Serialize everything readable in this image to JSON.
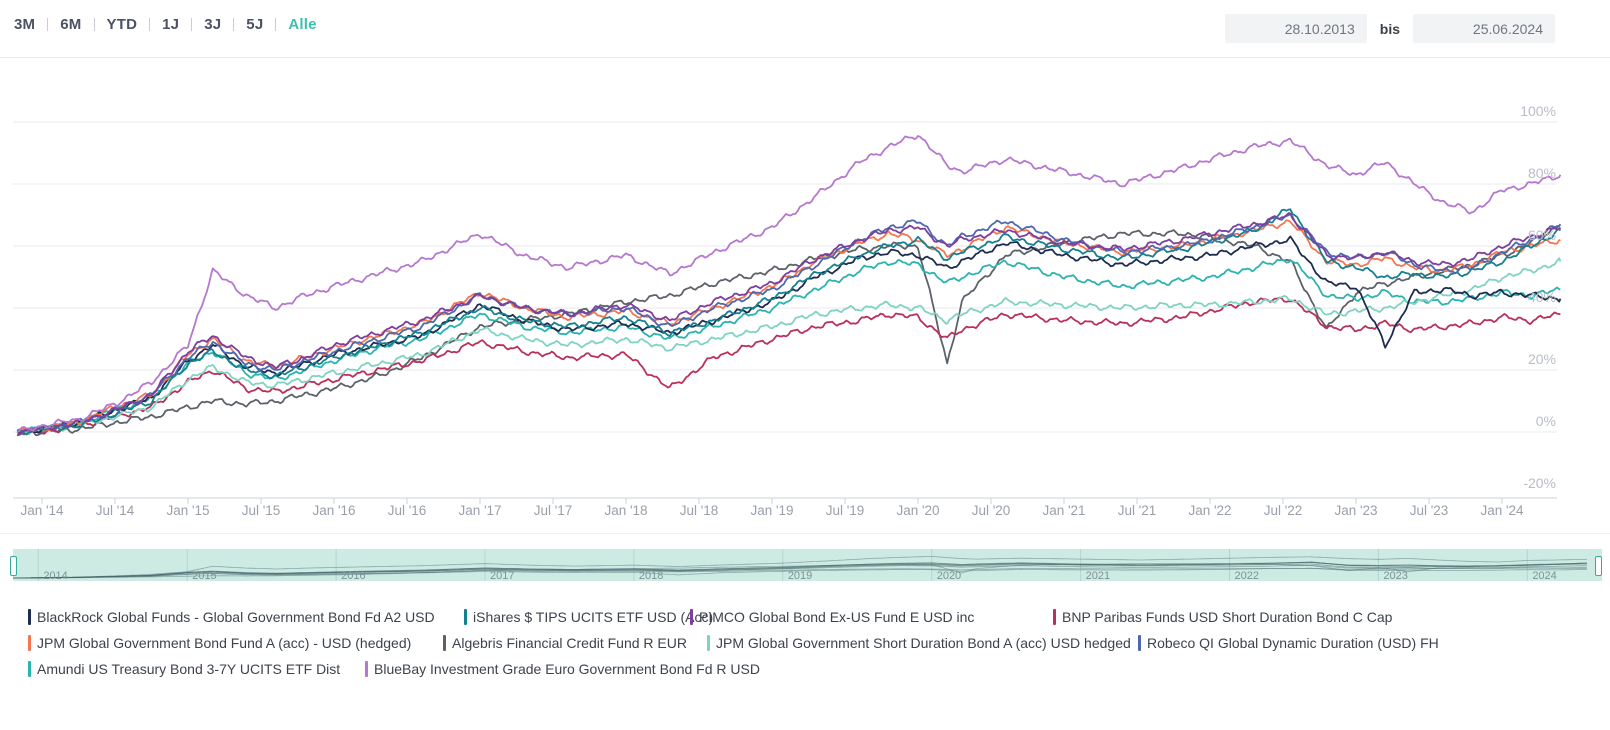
{
  "toolbar": {
    "ranges": [
      {
        "label": "3M",
        "active": false
      },
      {
        "label": "6M",
        "active": false
      },
      {
        "label": "YTD",
        "active": false
      },
      {
        "label": "1J",
        "active": false
      },
      {
        "label": "3J",
        "active": false
      },
      {
        "label": "5J",
        "active": false
      },
      {
        "label": "Alle",
        "active": true
      }
    ],
    "date_from": "28.10.2013",
    "separator_label": "bis",
    "date_to": "25.06.2024"
  },
  "chart_data": {
    "type": "line",
    "title": "",
    "xlabel": "",
    "ylabel": "",
    "ylim": [
      -20,
      100
    ],
    "grid": true,
    "legend_position": "bottom",
    "y_ticks": [
      "100%",
      "80%",
      "60%",
      "40%",
      "20%",
      "0%",
      "-20%"
    ],
    "x_ticks": [
      "Jan '14",
      "Jul '14",
      "Jan '15",
      "Jul '15",
      "Jan '16",
      "Jul '16",
      "Jan '17",
      "Jul '17",
      "Jan '18",
      "Jul '18",
      "Jan '19",
      "Jul '19",
      "Jan '20",
      "Jul '20",
      "Jan '21",
      "Jul '21",
      "Jan '22",
      "Jul '22",
      "Jan '23",
      "Jul '23",
      "Jan '24"
    ],
    "x_years": [
      2013.83,
      2014.0,
      2014.25,
      2014.5,
      2014.75,
      2015.0,
      2015.17,
      2015.4,
      2015.6,
      2015.8,
      2016.0,
      2016.3,
      2016.6,
      2017.0,
      2017.3,
      2017.6,
      2018.0,
      2018.3,
      2018.6,
      2019.0,
      2019.3,
      2019.6,
      2019.8,
      2020.0,
      2020.2,
      2020.3,
      2020.6,
      2021.0,
      2021.4,
      2021.8,
      2022.0,
      2022.3,
      2022.55,
      2022.8,
      2023.0,
      2023.2,
      2023.4,
      2023.6,
      2023.8,
      2024.0,
      2024.2,
      2024.4
    ],
    "unit": "percent",
    "series": [
      {
        "name": "BlackRock Global Funds - Global Government Bond Fd A2 USD",
        "color": "#1e2c4f",
        "values": [
          0,
          1,
          3,
          7,
          11,
          23,
          28,
          21,
          19,
          22,
          25,
          28,
          31,
          41,
          36,
          33,
          35,
          32,
          36,
          42,
          50,
          56,
          58,
          57,
          53,
          55,
          61,
          57,
          54,
          56,
          57,
          60,
          62,
          48,
          47,
          28,
          45,
          46,
          44,
          45,
          44,
          43
        ]
      },
      {
        "name": "iShares $ TIPS UCITS ETF USD (Acc)",
        "color": "#15808f",
        "values": [
          0,
          1,
          2,
          6,
          10,
          22,
          26,
          20,
          18,
          21,
          24,
          28,
          32,
          40,
          36,
          34,
          37,
          32,
          36,
          43,
          51,
          57,
          60,
          62,
          56,
          58,
          63,
          59,
          56,
          59,
          61,
          65,
          72,
          55,
          53,
          50,
          51,
          50,
          52,
          55,
          60,
          65
        ]
      },
      {
        "name": "PIMCO Global Bond Ex-US Fund E USD inc",
        "color": "#7d3f9e",
        "values": [
          0,
          1,
          3,
          7,
          12,
          26,
          31,
          24,
          21,
          24,
          28,
          32,
          36,
          44,
          40,
          38,
          41,
          36,
          42,
          48,
          56,
          62,
          65,
          66,
          60,
          62,
          65,
          61,
          59,
          62,
          64,
          67,
          70,
          57,
          56,
          58,
          55,
          54,
          56,
          60,
          63,
          66
        ]
      },
      {
        "name": "BNP Paribas Funds USD Short Duration Bond C Cap",
        "color": "#ba3059",
        "values": [
          0,
          0,
          2,
          5,
          8,
          16,
          20,
          14,
          13,
          15,
          17,
          20,
          23,
          29,
          26,
          24,
          25,
          14,
          24,
          30,
          34,
          36,
          38,
          37,
          30,
          33,
          38,
          36,
          35,
          37,
          39,
          42,
          43,
          34,
          33,
          35,
          33,
          34,
          35,
          37,
          36,
          38
        ]
      },
      {
        "name": "JPM Global Government Bond Fund A (acc) - USD (hedged)",
        "color": "#f4764f",
        "values": [
          0,
          1,
          3,
          8,
          12,
          25,
          30,
          23,
          21,
          24,
          27,
          31,
          35,
          45,
          40,
          37,
          39,
          35,
          40,
          47,
          55,
          61,
          64,
          62,
          57,
          59,
          66,
          61,
          58,
          60,
          62,
          65,
          68,
          55,
          54,
          56,
          53,
          52,
          54,
          58,
          60,
          62
        ]
      },
      {
        "name": "Algebris Financial Credit Fund R EUR",
        "color": "#5d6269",
        "values": [
          0,
          0,
          1,
          3,
          5,
          8,
          10,
          9,
          10,
          12,
          14,
          18,
          24,
          34,
          36,
          38,
          42,
          44,
          48,
          52,
          56,
          59,
          60,
          60,
          22,
          42,
          57,
          61,
          64,
          64,
          63,
          60,
          55,
          33,
          45,
          48,
          50,
          52,
          54,
          57,
          61,
          67
        ]
      },
      {
        "name": "JPM Global Government Short Duration Bond A (acc) USD hedged",
        "color": "#7fd3c2",
        "values": [
          0,
          1,
          2,
          5,
          8,
          17,
          21,
          16,
          15,
          17,
          19,
          22,
          25,
          33,
          30,
          28,
          30,
          27,
          30,
          34,
          38,
          40,
          41,
          40,
          36,
          38,
          42,
          41,
          40,
          41,
          41,
          42,
          43,
          38,
          39,
          40,
          42,
          44,
          46,
          50,
          52,
          55
        ]
      },
      {
        "name": "Robeco QI Global Dynamic Duration (USD) FH",
        "color": "#4e68b0",
        "values": [
          0,
          1,
          3,
          7,
          12,
          24,
          29,
          22,
          20,
          23,
          26,
          30,
          34,
          44,
          40,
          38,
          40,
          34,
          40,
          46,
          54,
          62,
          66,
          68,
          60,
          63,
          68,
          62,
          58,
          60,
          62,
          66,
          70,
          58,
          56,
          58,
          54,
          52,
          53,
          58,
          62,
          67
        ]
      },
      {
        "name": "Amundi US Treasury Bond 3-7Y UCITS ETF Dist",
        "color": "#2bb3b0",
        "values": [
          0,
          1,
          3,
          7,
          11,
          22,
          26,
          19,
          17,
          20,
          23,
          27,
          30,
          38,
          34,
          32,
          34,
          30,
          34,
          40,
          46,
          52,
          55,
          54,
          48,
          50,
          55,
          50,
          47,
          49,
          50,
          53,
          56,
          44,
          43,
          45,
          42,
          42,
          43,
          45,
          44,
          46
        ]
      },
      {
        "name": "BlueBay Investment Grade Euro Government Bond Fd R USD",
        "color": "#b678ce",
        "values": [
          0,
          2,
          4,
          9,
          16,
          28,
          52,
          44,
          40,
          44,
          47,
          51,
          55,
          64,
          57,
          53,
          57,
          51,
          58,
          66,
          76,
          87,
          92,
          96,
          86,
          84,
          88,
          84,
          80,
          85,
          88,
          92,
          94,
          86,
          83,
          87,
          80,
          74,
          71,
          78,
          80,
          83
        ]
      }
    ]
  },
  "navigator": {
    "years": [
      "2014",
      "2015",
      "2016",
      "2017",
      "2018",
      "2019",
      "2020",
      "2021",
      "2022",
      "2023",
      "2024"
    ]
  }
}
